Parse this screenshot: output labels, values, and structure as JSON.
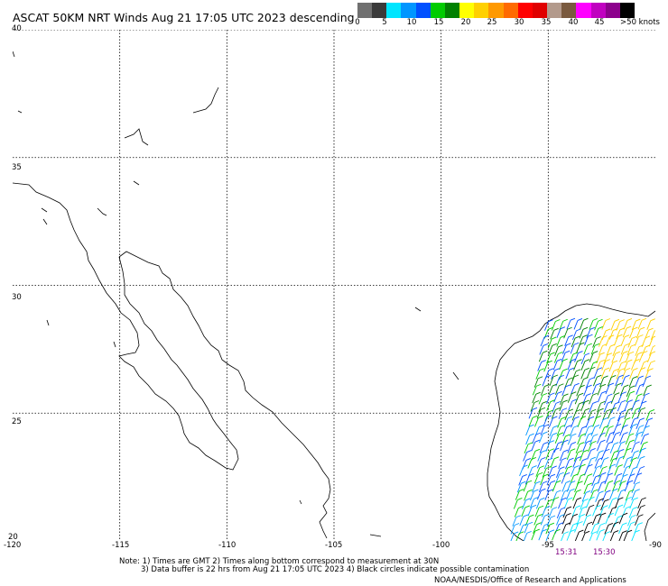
{
  "title": "ASCAT 50KM NRT Winds Aug 21 17:05 UTC 2023 descending",
  "colorbar": {
    "labels": [
      "0",
      "5",
      "10",
      "15",
      "20",
      "25",
      "30",
      "35",
      "40",
      "45",
      ">50 knots"
    ],
    "colors": [
      "#707070",
      "#3a3a3a",
      "#00e5ff",
      "#0096ff",
      "#0050ff",
      "#00cc00",
      "#008000",
      "#ffff00",
      "#ffd000",
      "#ff9900",
      "#ff6a00",
      "#ff0000",
      "#e00000",
      "#b39a8c",
      "#7a5a3f",
      "#ff00ff",
      "#c000c0",
      "#8c008c",
      "#000000"
    ]
  },
  "map": {
    "lon_range": [
      -120,
      -90
    ],
    "lat_range": [
      20,
      40
    ],
    "x_ticks": [
      "-120",
      "-115",
      "-110",
      "-105",
      "-100",
      "-95",
      "-90"
    ],
    "y_ticks": [
      "40",
      "35",
      "30",
      "25",
      "20"
    ],
    "coast_color": "#000000",
    "grid_color": "#000000"
  },
  "pass_times": [
    "15:31",
    "15:30"
  ],
  "notes": {
    "line1": "Note: 1) Times are GMT 2) Times along bottom correspond to measurement at 30N",
    "line2": "3) Data buffer is 22 hrs from Aug 21 17:05 UTC 2023 4) Black circles indicate possible contamination",
    "credit": "NOAA/NESDIS/Office of Research and Applications"
  }
}
